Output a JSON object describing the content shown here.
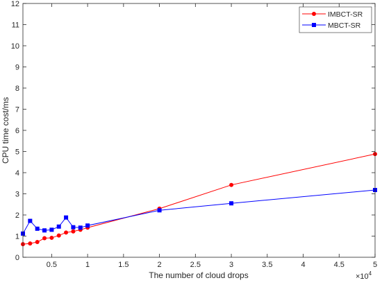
{
  "chart_data": {
    "type": "line",
    "xlabel": "The number of cloud drops",
    "ylabel": "CPU time cost/ms",
    "x_multiplier_label": "×10",
    "x_multiplier_exponent": "4",
    "xlim": [
      0.1,
      5
    ],
    "ylim": [
      0,
      12
    ],
    "xticks": [
      0.5,
      1,
      1.5,
      2,
      2.5,
      3,
      3.5,
      4,
      4.5,
      5
    ],
    "xtick_labels": [
      "0.5",
      "1",
      "1.5",
      "2",
      "2.5",
      "3",
      "3.5",
      "4",
      "4.5",
      "5"
    ],
    "yticks": [
      0,
      1,
      2,
      3,
      4,
      5,
      6,
      7,
      8,
      9,
      10,
      11,
      12
    ],
    "ytick_labels": [
      "0",
      "1",
      "2",
      "3",
      "4",
      "5",
      "6",
      "7",
      "8",
      "9",
      "10",
      "11",
      "12"
    ],
    "grid": false,
    "legend_position": "top-right",
    "series": [
      {
        "name": "IMBCT-SR",
        "color": "#ff0000",
        "marker": "circle",
        "x": [
          0.1,
          0.2,
          0.3,
          0.4,
          0.5,
          0.6,
          0.7,
          0.8,
          0.9,
          1,
          2,
          3,
          5
        ],
        "y": [
          0.62,
          0.65,
          0.72,
          0.9,
          0.92,
          1.03,
          1.17,
          1.22,
          1.3,
          1.4,
          2.3,
          3.42,
          4.88
        ]
      },
      {
        "name": "MBCT-SR",
        "color": "#0000ff",
        "marker": "square",
        "x": [
          0.1,
          0.2,
          0.3,
          0.4,
          0.5,
          0.6,
          0.7,
          0.8,
          0.9,
          1,
          2,
          3,
          5
        ],
        "y": [
          1.12,
          1.72,
          1.35,
          1.27,
          1.3,
          1.45,
          1.88,
          1.42,
          1.4,
          1.5,
          2.22,
          2.55,
          3.18
        ]
      }
    ]
  }
}
